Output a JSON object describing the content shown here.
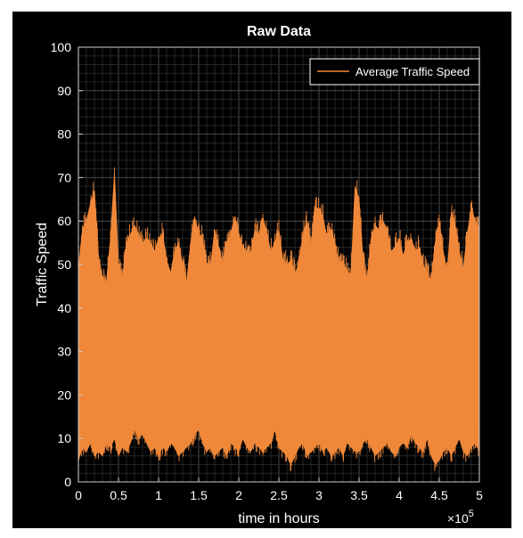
{
  "chart_data": {
    "type": "line",
    "title": "Raw Data",
    "xlabel": "time in hours",
    "ylabel": "Traffic Speed",
    "x_multiplier_label": "×10",
    "x_multiplier_exponent": "5",
    "xlim": [
      0,
      5
    ],
    "ylim": [
      0,
      100
    ],
    "xticks": [
      "0",
      "0.5",
      "1",
      "1.5",
      "2",
      "2.5",
      "3",
      "3.5",
      "4",
      "4.5",
      "5"
    ],
    "yticks": [
      "0",
      "10",
      "20",
      "30",
      "40",
      "50",
      "60",
      "70",
      "80",
      "90",
      "100"
    ],
    "grid": true,
    "legend_position": "top-right",
    "series": [
      {
        "name": "Average Traffic Speed",
        "color": "#F0883A",
        "x": [
          0,
          0.05,
          0.1,
          0.15,
          0.2,
          0.25,
          0.3,
          0.35,
          0.4,
          0.45,
          0.5,
          0.55,
          0.6,
          0.65,
          0.7,
          0.75,
          0.8,
          0.85,
          0.9,
          0.95,
          1.0,
          1.05,
          1.1,
          1.15,
          1.2,
          1.25,
          1.3,
          1.35,
          1.4,
          1.45,
          1.5,
          1.55,
          1.6,
          1.65,
          1.7,
          1.75,
          1.8,
          1.85,
          1.9,
          1.95,
          2.0,
          2.05,
          2.1,
          2.15,
          2.2,
          2.25,
          2.3,
          2.35,
          2.4,
          2.45,
          2.5,
          2.55,
          2.6,
          2.65,
          2.7,
          2.75,
          2.8,
          2.85,
          2.9,
          2.95,
          3.0,
          3.05,
          3.1,
          3.15,
          3.2,
          3.25,
          3.3,
          3.35,
          3.4,
          3.45,
          3.5,
          3.55,
          3.6,
          3.65,
          3.7,
          3.75,
          3.8,
          3.85,
          3.9,
          3.95,
          4.0,
          4.05,
          4.1,
          4.15,
          4.2,
          4.25,
          4.3,
          4.35,
          4.4,
          4.45,
          4.5,
          4.55,
          4.6,
          4.65,
          4.7,
          4.75,
          4.8,
          4.85,
          4.9,
          4.95,
          5.0
        ],
        "upper": [
          49,
          58,
          60,
          64,
          67,
          52,
          47,
          46,
          56,
          71,
          50,
          47,
          55,
          57,
          59,
          57,
          55,
          56,
          55,
          53,
          56,
          57,
          51,
          48,
          53,
          55,
          50,
          46,
          55,
          61,
          57,
          56,
          50,
          50,
          58,
          54,
          50,
          55,
          57,
          61,
          57,
          54,
          53,
          52,
          58,
          57,
          61,
          57,
          53,
          55,
          58,
          51,
          50,
          51,
          48,
          50,
          57,
          60,
          54,
          63,
          63,
          61,
          56,
          58,
          55,
          50,
          51,
          48,
          48,
          68,
          65,
          51,
          46,
          56,
          59,
          58,
          60,
          58,
          53,
          54,
          56,
          52,
          55,
          56,
          53,
          54,
          50,
          48,
          46,
          55,
          60,
          53,
          48,
          62,
          59,
          53,
          49,
          57,
          63,
          60,
          58
        ],
        "lower": [
          5,
          8,
          7,
          9,
          6,
          7,
          6,
          9,
          8,
          10,
          6,
          8,
          7,
          9,
          12,
          10,
          11,
          9,
          7,
          8,
          6,
          8,
          7,
          9,
          8,
          6,
          7,
          8,
          9,
          11,
          12,
          9,
          7,
          8,
          6,
          7,
          8,
          6,
          9,
          8,
          7,
          10,
          8,
          7,
          9,
          8,
          7,
          8,
          9,
          12,
          8,
          7,
          6,
          4,
          6,
          8,
          9,
          6,
          7,
          8,
          9,
          7,
          8,
          6,
          7,
          8,
          6,
          9,
          8,
          7,
          7,
          9,
          10,
          8,
          6,
          7,
          8,
          9,
          7,
          6,
          8,
          9,
          8,
          11,
          9,
          8,
          7,
          10,
          6,
          4,
          5,
          7,
          8,
          6,
          8,
          10,
          7,
          6,
          8,
          9,
          7
        ]
      }
    ]
  }
}
